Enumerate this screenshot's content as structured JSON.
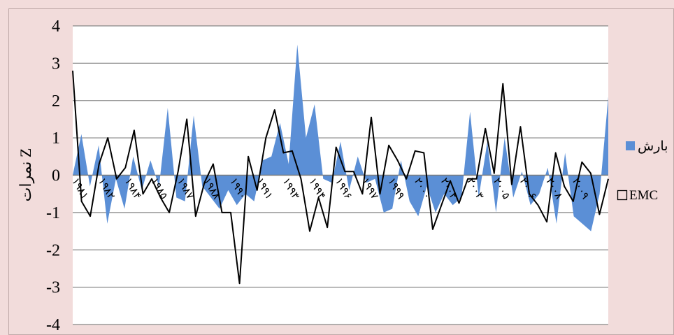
{
  "chart_data": {
    "type": "area",
    "ylabel": "نمرات Z",
    "ylim": [
      -4,
      4
    ],
    "yticks": [
      "4",
      "3",
      "2",
      "1",
      "0",
      "-1",
      "-2",
      "-3",
      "-4"
    ],
    "grid": true,
    "legend_placement": "right",
    "x_tick_labels": [
      "۱۹۸۱",
      "۱۹۸۲",
      "۱۹۸۴",
      "۱۹۸۵",
      "۱۹۸۷",
      "۱۹۸۸",
      "۱۹۹۰",
      "۱۹۹۱",
      "۱۹۹۳",
      "۱۹۹۴",
      "۱۹۹۶",
      "۱۹۹۷",
      "۱۹۹۹",
      "۲۰۰۰",
      "۲۰۰۲",
      "۲۰۰۳",
      "۲۰۰۵",
      "۲۰۰۶",
      "۲۰۰۸",
      "۲۰۰۹"
    ],
    "series": [
      {
        "name": "بارش",
        "type": "area",
        "color": "#5B8FD6",
        "values": [
          0.0,
          1.1,
          -0.3,
          0.8,
          -1.3,
          -0.1,
          -0.9,
          0.5,
          -0.4,
          0.4,
          -0.3,
          1.8,
          -0.6,
          -0.7,
          1.6,
          -0.3,
          -0.6,
          -0.9,
          -0.4,
          -0.8,
          -0.5,
          -0.7,
          0.4,
          0.5,
          1.4,
          0.3,
          3.5,
          1.0,
          1.9,
          -0.1,
          -0.2,
          0.9,
          -0.4,
          0.5,
          -0.2,
          -0.1,
          -1.0,
          -0.9,
          0.4,
          -0.7,
          -1.1,
          -0.3,
          -1.0,
          -0.5,
          -0.8,
          -0.6,
          1.7,
          -0.6,
          0.9,
          -1.0,
          1.0,
          -0.6,
          0.1,
          -0.8,
          -0.5,
          0.2,
          -1.3,
          0.6,
          -1.1,
          -1.3,
          -1.5,
          -0.5,
          2.1
        ]
      },
      {
        "name": "EMC",
        "type": "line",
        "color": "#000000",
        "values": [
          2.8,
          -0.7,
          -1.1,
          0.3,
          1.0,
          -0.1,
          0.2,
          1.2,
          -0.5,
          -0.1,
          -0.6,
          -1.0,
          0.1,
          1.5,
          -1.1,
          -0.2,
          0.3,
          -1.0,
          -1.0,
          -2.9,
          0.5,
          -0.4,
          1.0,
          1.75,
          0.6,
          0.65,
          -0.1,
          -1.5,
          -0.6,
          -1.4,
          0.75,
          0.1,
          0.1,
          -0.5,
          1.55,
          -0.5,
          0.8,
          0.4,
          -0.1,
          0.65,
          0.6,
          -1.45,
          -0.8,
          -0.15,
          -0.75,
          -0.1,
          -0.1,
          1.25,
          0.05,
          2.45,
          -0.25,
          1.3,
          -0.5,
          -0.8,
          -1.25,
          0.6,
          -0.3,
          -0.7,
          0.35,
          0.05,
          -1.05,
          -0.1
        ]
      }
    ]
  }
}
